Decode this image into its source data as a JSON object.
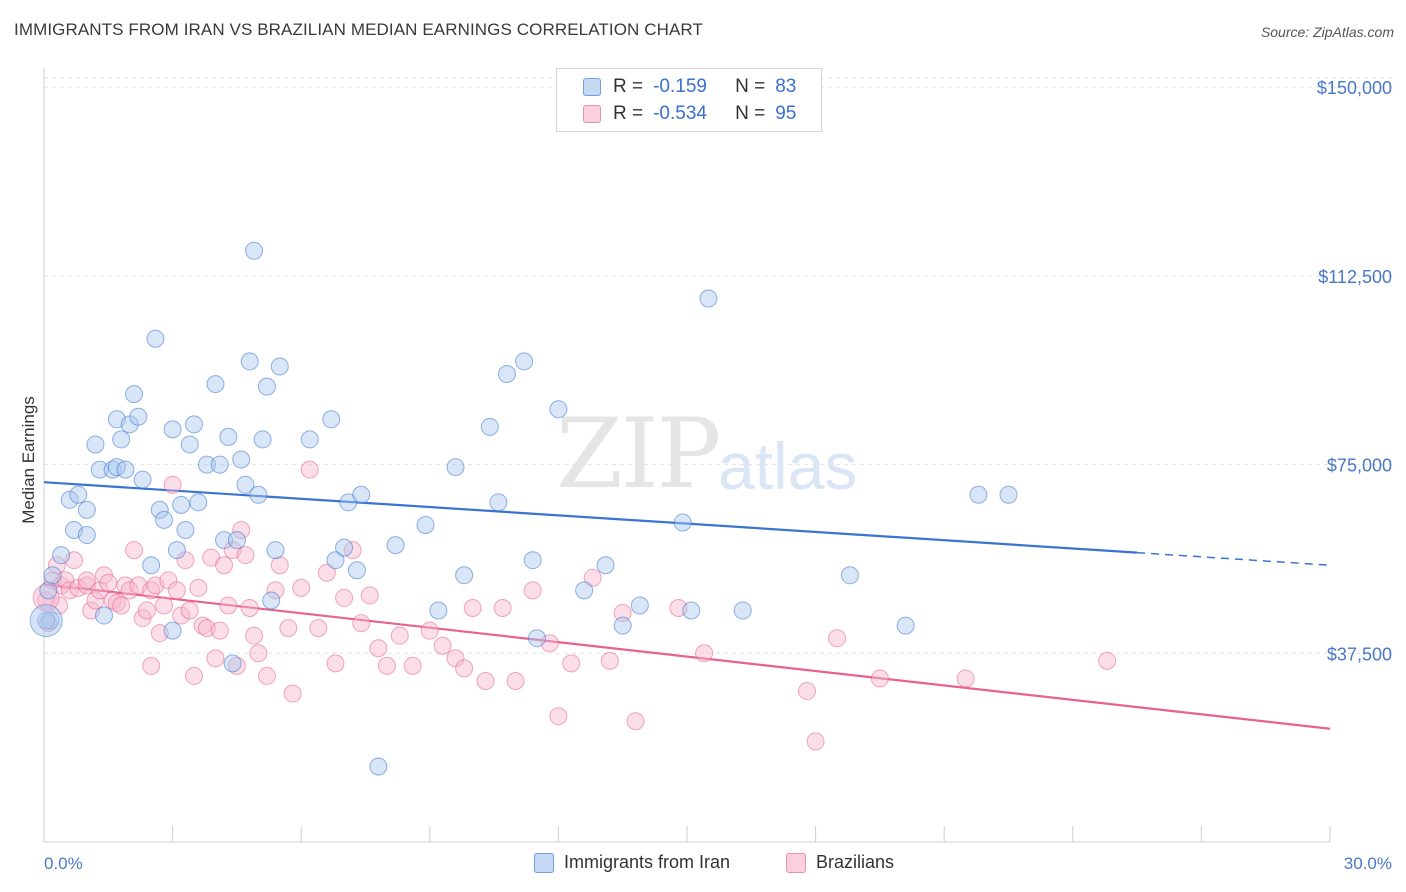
{
  "header": {
    "title": "IMMIGRANTS FROM IRAN VS BRAZILIAN MEDIAN EARNINGS CORRELATION CHART",
    "source": "Source: ZipAtlas.com"
  },
  "watermark": {
    "zip": "ZIP",
    "atlas": "atlas"
  },
  "legend": {
    "rows": [
      {
        "r_label": "R =",
        "r_value": "-0.159",
        "n_label": "N =",
        "n_value": "83",
        "color": "#a9c8f0"
      },
      {
        "r_label": "R =",
        "r_value": "-0.534",
        "n_label": "N =",
        "n_value": "95",
        "color": "#f7b6cb"
      }
    ]
  },
  "bottom_legend": {
    "iran": "Immigrants from Iran",
    "brazil": "Brazilians"
  },
  "chart_data": {
    "type": "scatter",
    "title": "IMMIGRANTS FROM IRAN VS BRAZILIAN MEDIAN EARNINGS CORRELATION CHART",
    "xlabel": "",
    "ylabel": "Median Earnings",
    "xlim": [
      0,
      30
    ],
    "ylim": [
      0,
      155000
    ],
    "x_tick_labels": [
      "0.0%",
      "30.0%"
    ],
    "y_ticks": [
      37500,
      75000,
      112500,
      150000
    ],
    "y_tick_labels": [
      "$37,500",
      "$75,000",
      "$112,500",
      "$150,000"
    ],
    "grid": "horizontal dashed",
    "colors": {
      "iran": "#3a74d0",
      "iran_fill": "#a9c8f0",
      "brazil": "#e8628f",
      "brazil_fill": "#f7b6cb"
    },
    "series": [
      {
        "name": "Immigrants from Iran",
        "trend": {
          "x": [
            0,
            25.5
          ],
          "y": [
            71500,
            57500
          ],
          "dashed_to": [
            30,
            55000
          ]
        },
        "points": [
          [
            0.1,
            50000
          ],
          [
            0.15,
            44000
          ],
          [
            0.2,
            53000
          ],
          [
            0.4,
            57000
          ],
          [
            0.6,
            68000
          ],
          [
            0.7,
            62000
          ],
          [
            0.8,
            69000
          ],
          [
            1.0,
            61000
          ],
          [
            1.0,
            66000
          ],
          [
            1.2,
            79000
          ],
          [
            1.3,
            74000
          ],
          [
            1.4,
            45000
          ],
          [
            1.6,
            74000
          ],
          [
            1.7,
            74500
          ],
          [
            1.7,
            84000
          ],
          [
            1.8,
            80000
          ],
          [
            1.9,
            74000
          ],
          [
            2.0,
            83000
          ],
          [
            2.1,
            89000
          ],
          [
            2.2,
            84500
          ],
          [
            2.3,
            72000
          ],
          [
            2.5,
            55000
          ],
          [
            2.6,
            100000
          ],
          [
            2.7,
            66000
          ],
          [
            2.8,
            64000
          ],
          [
            3.0,
            82000
          ],
          [
            3.0,
            42000
          ],
          [
            3.1,
            58000
          ],
          [
            3.2,
            67000
          ],
          [
            3.3,
            62000
          ],
          [
            3.4,
            79000
          ],
          [
            3.5,
            83000
          ],
          [
            3.6,
            67500
          ],
          [
            3.8,
            75000
          ],
          [
            4.0,
            91000
          ],
          [
            4.1,
            75000
          ],
          [
            4.2,
            60000
          ],
          [
            4.3,
            80500
          ],
          [
            4.4,
            35500
          ],
          [
            4.5,
            60000
          ],
          [
            4.6,
            76000
          ],
          [
            4.7,
            71000
          ],
          [
            4.8,
            95500
          ],
          [
            4.9,
            117500
          ],
          [
            5.0,
            69000
          ],
          [
            5.1,
            80000
          ],
          [
            5.2,
            90500
          ],
          [
            5.4,
            58000
          ],
          [
            5.5,
            94500
          ],
          [
            5.3,
            48000
          ],
          [
            6.2,
            80000
          ],
          [
            6.7,
            84000
          ],
          [
            6.8,
            56000
          ],
          [
            7.1,
            67500
          ],
          [
            7.3,
            54000
          ],
          [
            7.4,
            69000
          ],
          [
            7.0,
            58500
          ],
          [
            7.8,
            15000
          ],
          [
            8.2,
            59000
          ],
          [
            8.9,
            63000
          ],
          [
            9.2,
            46000
          ],
          [
            9.6,
            74500
          ],
          [
            9.8,
            53000
          ],
          [
            10.4,
            82500
          ],
          [
            10.6,
            67500
          ],
          [
            10.8,
            93000
          ],
          [
            11.2,
            95500
          ],
          [
            11.4,
            56000
          ],
          [
            11.5,
            40500
          ],
          [
            12.0,
            86000
          ],
          [
            12.6,
            50000
          ],
          [
            13.1,
            55000
          ],
          [
            13.5,
            43000
          ],
          [
            13.9,
            47000
          ],
          [
            14.9,
            63500
          ],
          [
            15.1,
            46000
          ],
          [
            15.5,
            108000
          ],
          [
            16.3,
            46000
          ],
          [
            18.8,
            53000
          ],
          [
            20.1,
            43000
          ],
          [
            21.8,
            69000
          ],
          [
            22.5,
            69000
          ],
          [
            0.05,
            44000
          ]
        ]
      },
      {
        "name": "Brazilians",
        "trend": {
          "x": [
            0,
            30
          ],
          "y": [
            51200,
            22500
          ]
        },
        "points": [
          [
            0.05,
            48000
          ],
          [
            0.1,
            43500
          ],
          [
            0.2,
            52000
          ],
          [
            0.3,
            55000
          ],
          [
            0.35,
            47000
          ],
          [
            0.4,
            51000
          ],
          [
            0.5,
            52000
          ],
          [
            0.6,
            50000
          ],
          [
            0.7,
            56000
          ],
          [
            0.8,
            50500
          ],
          [
            1.0,
            51000
          ],
          [
            1.1,
            46000
          ],
          [
            1.2,
            48000
          ],
          [
            1.3,
            50000
          ],
          [
            1.4,
            53000
          ],
          [
            1.5,
            51500
          ],
          [
            1.6,
            48000
          ],
          [
            1.7,
            47500
          ],
          [
            1.8,
            47000
          ],
          [
            1.9,
            51000
          ],
          [
            2.0,
            50000
          ],
          [
            2.1,
            58000
          ],
          [
            2.2,
            51000
          ],
          [
            2.3,
            44500
          ],
          [
            2.4,
            46000
          ],
          [
            2.5,
            50000
          ],
          [
            2.6,
            51000
          ],
          [
            2.7,
            41500
          ],
          [
            2.8,
            47000
          ],
          [
            2.9,
            52000
          ],
          [
            3.0,
            71000
          ],
          [
            3.1,
            50000
          ],
          [
            3.2,
            45000
          ],
          [
            3.3,
            56000
          ],
          [
            3.4,
            46000
          ],
          [
            3.5,
            33000
          ],
          [
            3.6,
            50500
          ],
          [
            3.7,
            43000
          ],
          [
            3.8,
            42500
          ],
          [
            3.9,
            56500
          ],
          [
            4.0,
            36500
          ],
          [
            4.1,
            42000
          ],
          [
            4.2,
            55000
          ],
          [
            4.3,
            47000
          ],
          [
            4.4,
            58000
          ],
          [
            4.5,
            35000
          ],
          [
            4.6,
            62000
          ],
          [
            4.7,
            57000
          ],
          [
            4.8,
            46500
          ],
          [
            4.9,
            41000
          ],
          [
            5.0,
            37500
          ],
          [
            5.2,
            33000
          ],
          [
            5.4,
            50000
          ],
          [
            5.5,
            55000
          ],
          [
            5.7,
            42500
          ],
          [
            5.8,
            29500
          ],
          [
            6.0,
            50500
          ],
          [
            6.2,
            74000
          ],
          [
            6.4,
            42500
          ],
          [
            6.6,
            53500
          ],
          [
            6.8,
            35500
          ],
          [
            7.0,
            48500
          ],
          [
            7.2,
            58000
          ],
          [
            7.4,
            43500
          ],
          [
            7.6,
            49000
          ],
          [
            7.8,
            38500
          ],
          [
            8.0,
            35000
          ],
          [
            8.3,
            41000
          ],
          [
            8.6,
            35000
          ],
          [
            9.0,
            42000
          ],
          [
            9.3,
            39000
          ],
          [
            9.6,
            36500
          ],
          [
            9.8,
            34500
          ],
          [
            10.0,
            46500
          ],
          [
            10.3,
            32000
          ],
          [
            10.7,
            46500
          ],
          [
            11.0,
            32000
          ],
          [
            11.4,
            50000
          ],
          [
            11.8,
            39500
          ],
          [
            12.0,
            25000
          ],
          [
            12.3,
            35500
          ],
          [
            12.8,
            52500
          ],
          [
            13.2,
            36000
          ],
          [
            13.5,
            45500
          ],
          [
            13.8,
            24000
          ],
          [
            14.8,
            46500
          ],
          [
            15.4,
            37500
          ],
          [
            17.8,
            30000
          ],
          [
            18.0,
            20000
          ],
          [
            18.5,
            40500
          ],
          [
            19.5,
            32500
          ],
          [
            21.5,
            32500
          ],
          [
            24.8,
            36000
          ],
          [
            1.0,
            52000
          ],
          [
            2.5,
            35000
          ]
        ]
      }
    ]
  }
}
